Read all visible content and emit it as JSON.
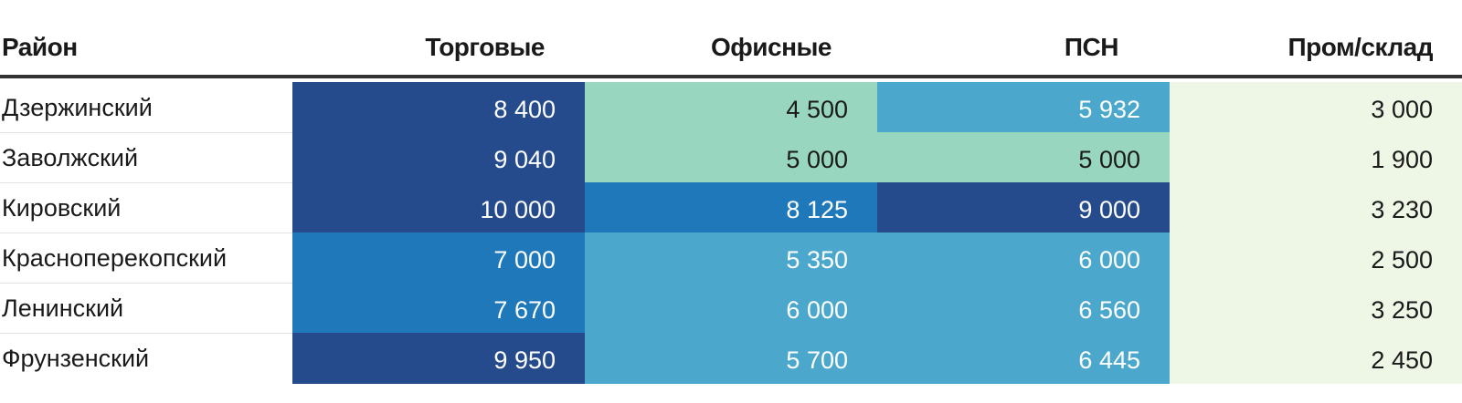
{
  "chart_data": {
    "type": "table",
    "columns": [
      "Район",
      "Торговые",
      "Офисные",
      "ПСН",
      "Пром/склад"
    ],
    "rows": [
      {
        "name": "Дзержинский",
        "values": [
          "8 400",
          "4 500",
          "5 932",
          "3 000"
        ],
        "numbers": [
          8400,
          4500,
          5932,
          3000
        ]
      },
      {
        "name": "Заволжский",
        "values": [
          "9 040",
          "5 000",
          "5 000",
          "1 900"
        ],
        "numbers": [
          9040,
          5000,
          5000,
          1900
        ]
      },
      {
        "name": "Кировский",
        "values": [
          "10 000",
          "8 125",
          "9 000",
          "3 230"
        ],
        "numbers": [
          10000,
          8125,
          9000,
          3230
        ]
      },
      {
        "name": "Красноперекопский",
        "values": [
          "7 000",
          "5 350",
          "6 000",
          "2 500"
        ],
        "numbers": [
          7000,
          5350,
          6000,
          2500
        ]
      },
      {
        "name": "Ленинский",
        "values": [
          "7 670",
          "6 000",
          "6 560",
          "3 250"
        ],
        "numbers": [
          7670,
          6000,
          6560,
          3250
        ]
      },
      {
        "name": "Фрунзенский",
        "values": [
          "9 950",
          "5 700",
          "6 445",
          "2 450"
        ],
        "numbers": [
          9950,
          5700,
          6445,
          2450
        ]
      }
    ],
    "color_scale": [
      {
        "min": 0,
        "max": 3999,
        "color": "#eef7e6",
        "text": "#1a1a1a"
      },
      {
        "min": 4000,
        "max": 5349,
        "color": "#99d6c0",
        "text": "#1a1a1a"
      },
      {
        "min": 5350,
        "max": 6999,
        "color": "#4ba8cc",
        "text": "#ffffff"
      },
      {
        "min": 7000,
        "max": 8199,
        "color": "#1f78b9",
        "text": "#ffffff"
      },
      {
        "min": 8200,
        "max": 20000,
        "color": "#254b8c",
        "text": "#ffffff"
      }
    ]
  }
}
